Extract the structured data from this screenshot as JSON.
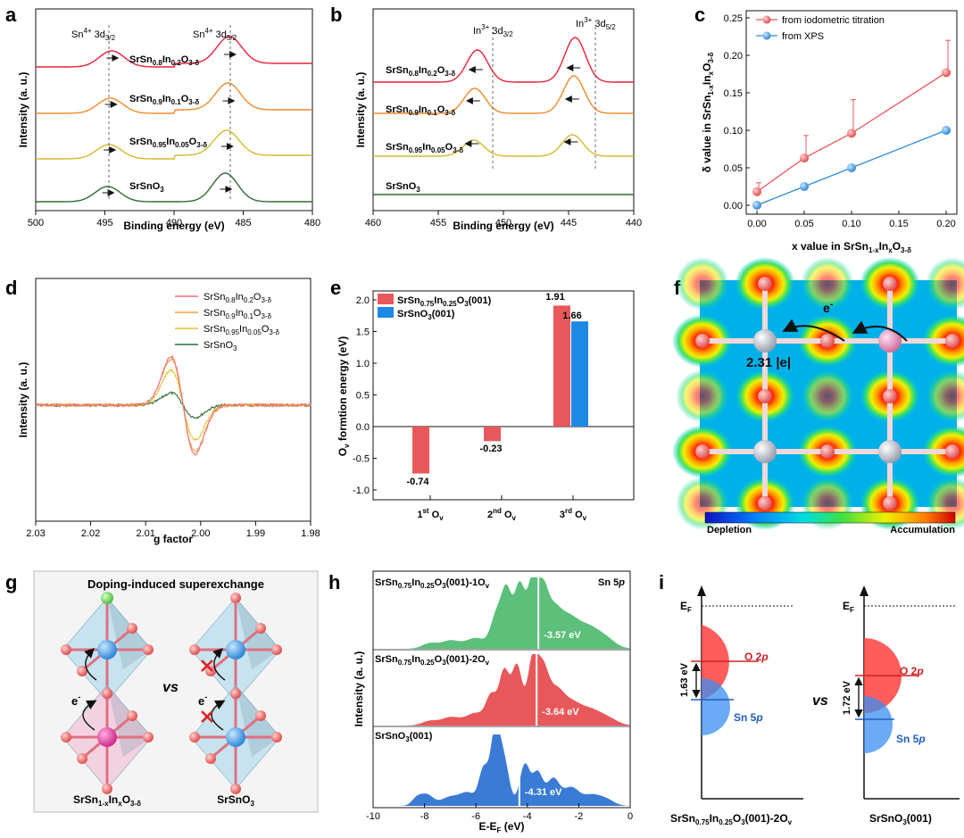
{
  "panels": {
    "a": {
      "label": "a",
      "xlabel": "Binding energy (eV)",
      "ylabel": "Intensity (a. u.)",
      "xticks": [
        "500",
        "495",
        "490",
        "485",
        "480"
      ],
      "peak1": "Sn4+ 3d3/2",
      "peak2": "Sn4+ 3d5/2",
      "series": [
        {
          "name": "SrSn0.8In0.2O3-δ",
          "color": "#e8203a"
        },
        {
          "name": "SrSn0.9In0.1O3-δ",
          "color": "#f08a2c"
        },
        {
          "name": "SrSn0.95In0.05O3-δ",
          "color": "#d6b92a"
        },
        {
          "name": "SrSnO3",
          "color": "#2f6b35"
        }
      ]
    },
    "b": {
      "label": "b",
      "xlabel": "Binding energy (eV)",
      "ylabel": "Intensity (a. u.)",
      "xticks": [
        "460",
        "455",
        "450",
        "445",
        "440"
      ],
      "peak1": "In3+ 3d3/2",
      "peak2": "In3+ 3d5/2",
      "series": [
        {
          "name": "SrSn0.8In0.2O3-δ",
          "color": "#e8203a"
        },
        {
          "name": "SrSn0.9In0.1O3-δ",
          "color": "#f08a2c"
        },
        {
          "name": "SrSn0.95In0.05O3-δ",
          "color": "#d6b92a"
        },
        {
          "name": "SrSnO3",
          "color": "#2f6b35"
        }
      ]
    },
    "c": {
      "label": "c",
      "xlabel": "x value in SrSn1-xInxO3-δ",
      "ylabel": "δ value in SrSn1-xInxO3-δ",
      "yticks": [
        "0.00",
        "0.05",
        "0.10",
        "0.15",
        "0.20",
        "0.25"
      ],
      "xticks": [
        "0.00",
        "0.05",
        "0.10",
        "0.15",
        "0.20"
      ]
    },
    "d": {
      "label": "d",
      "xlabel": "g factor",
      "ylabel": "Intensity (a. u.)",
      "xticks": [
        "2.03",
        "2.02",
        "2.01",
        "2.00",
        "1.99",
        "1.98"
      ],
      "series": [
        {
          "name": "SrSn0.8In0.2O3-δ",
          "color": "#f0707a"
        },
        {
          "name": "SrSn0.9In0.1O3-δ",
          "color": "#f0a040"
        },
        {
          "name": "SrSn0.95In0.05O3-δ",
          "color": "#e0c030"
        },
        {
          "name": "SrSnO3",
          "color": "#2f6b35"
        }
      ]
    },
    "e": {
      "label": "e",
      "ylabel": "Ov formtion energy (eV)",
      "yticks": [
        "-1.0",
        "-0.5",
        "0.0",
        "0.5",
        "1.0",
        "1.5",
        "2.0"
      ],
      "legend": [
        "SrSn0.75In0.25O3(001)",
        "SrSnO3(001)"
      ],
      "categories": [
        "1st Ov",
        "2nd Ov",
        "3rd Ov"
      ],
      "bar_labels": [
        "-0.74",
        "-0.23",
        "1.91",
        "1.66"
      ]
    },
    "f": {
      "label": "f",
      "electron": "e-",
      "charge": "2.31 |e|",
      "cb_left": "Depletion",
      "cb_right": "Accumulation"
    },
    "g": {
      "label": "g",
      "title": "Doping-induced superexchange",
      "vs": "vs",
      "left": "SrSn1-xInxO3-δ",
      "right": "SrSnO3",
      "electron": "e-"
    },
    "h": {
      "label": "h",
      "ylabel": "Intensity (a. u.)",
      "xlabel": "E-EF (eV)",
      "orbital": "Sn 5p",
      "xticks": [
        "-10",
        "-8",
        "-6",
        "-4",
        "-2",
        "0"
      ],
      "rows": [
        {
          "name": "SrSn0.75In0.25O3(001)-1Ov",
          "center": "-3.57 eV",
          "color": "#5cbf7a"
        },
        {
          "name": "SrSn0.75In0.25O3(001)-2Ov",
          "center": "-3.64 eV",
          "color": "#e8575a"
        },
        {
          "name": "SrSnO3(001)",
          "center": "-4.31 eV",
          "color": "#3a7bd5"
        }
      ]
    },
    "i": {
      "label": "i",
      "ef": "EF",
      "vs": "vs",
      "o2p": "O 2p",
      "sn5p": "Sn 5p",
      "left_gap": "1.63 eV",
      "right_gap": "1.72 eV",
      "left_name": "SrSn0.75In0.25O3(001)-2Ov",
      "right_name": "SrSnO3(001)"
    }
  },
  "chart_data": [
    {
      "type": "line",
      "title": "",
      "xlabel": "Binding energy (eV)",
      "ylabel": "Intensity (a. u.)",
      "xlim": [
        500,
        480
      ],
      "series": [
        {
          "name": "SrSn0.8In0.2O3-δ",
          "peaks": [
            494.5,
            486.0
          ]
        },
        {
          "name": "SrSn0.9In0.1O3-δ",
          "peaks": [
            494.6,
            486.1
          ]
        },
        {
          "name": "SrSn0.95In0.05O3-δ",
          "peaks": [
            494.7,
            486.2
          ]
        },
        {
          "name": "SrSnO3",
          "peaks": [
            494.8,
            486.3
          ]
        }
      ]
    },
    {
      "type": "line",
      "xlabel": "Binding energy (eV)",
      "ylabel": "Intensity (a. u.)",
      "xlim": [
        460,
        440
      ],
      "series": [
        {
          "name": "SrSn0.8In0.2O3-δ",
          "peaks": [
            452.0,
            444.5
          ]
        },
        {
          "name": "SrSn0.9In0.1O3-δ",
          "peaks": [
            452.2,
            444.6
          ]
        },
        {
          "name": "SrSn0.95In0.05O3-δ",
          "peaks": [
            452.3,
            444.7
          ]
        },
        {
          "name": "SrSnO3",
          "peaks": []
        }
      ]
    },
    {
      "type": "line",
      "xlabel": "x value in SrSn1-xInxO3-δ",
      "ylabel": "δ value in SrSn1-xInxO3-δ",
      "xlim": [
        0,
        0.2
      ],
      "ylim": [
        0,
        0.25
      ],
      "x": [
        0,
        0.05,
        0.1,
        0.2
      ],
      "series": [
        {
          "name": "from iodometric titration",
          "color": "#e8575a",
          "values": [
            0.018,
            0.063,
            0.096,
            0.177
          ],
          "err": [
            0.012,
            0.03,
            0.045,
            0.043
          ]
        },
        {
          "name": "from XPS",
          "color": "#2f8be0",
          "values": [
            0.0,
            0.025,
            0.05,
            0.1
          ]
        }
      ]
    },
    {
      "type": "line",
      "xlabel": "g factor",
      "ylabel": "Intensity (a. u.)",
      "xlim": [
        2.03,
        1.98
      ],
      "series": [
        {
          "name": "SrSn0.8In0.2O3-δ",
          "amp": 1.0
        },
        {
          "name": "SrSn0.9In0.1O3-δ",
          "amp": 0.95
        },
        {
          "name": "SrSn0.95In0.05O3-δ",
          "amp": 0.72
        },
        {
          "name": "SrSnO3",
          "amp": 0.25
        }
      ]
    },
    {
      "type": "bar",
      "ylabel": "Ov formtion energy (eV)",
      "categories": [
        "1st Ov",
        "2nd Ov",
        "3rd Ov"
      ],
      "ylim": [
        -1.2,
        2.3
      ],
      "series": [
        {
          "name": "SrSn0.75In0.25O3(001)",
          "color": "#e8575a",
          "values": [
            -0.74,
            -0.23,
            1.91
          ]
        },
        {
          "name": "SrSnO3(001)",
          "color": "#1e88e5",
          "values": [
            null,
            null,
            1.66
          ]
        }
      ]
    },
    {
      "type": "area",
      "xlabel": "E-EF (eV)",
      "ylabel": "Intensity (a. u.)",
      "xlim": [
        -10,
        0
      ],
      "series": [
        {
          "name": "SrSn0.75In0.25O3(001)-1Ov",
          "band_center": -3.57
        },
        {
          "name": "SrSn0.75In0.25O3(001)-2Ov",
          "band_center": -3.64
        },
        {
          "name": "SrSnO3(001)",
          "band_center": -4.31
        }
      ]
    }
  ]
}
